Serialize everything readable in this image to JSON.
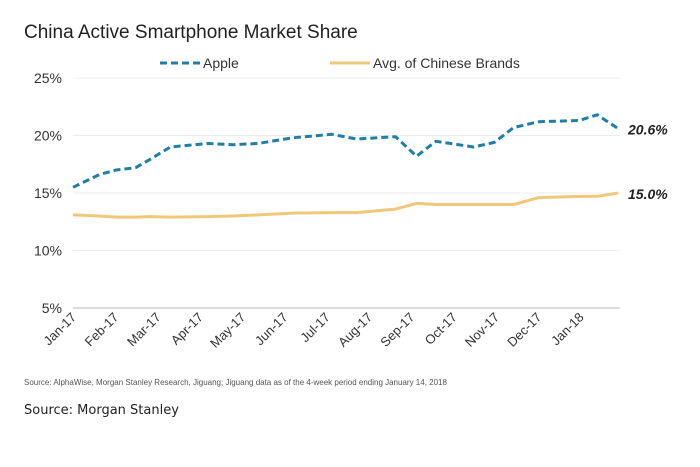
{
  "chart_data": {
    "type": "line",
    "title": "China Active Smartphone Market Share",
    "xlabel": "",
    "ylabel": "",
    "x_tick_labels": [
      "Jan-17",
      "Feb-17",
      "Mar-17",
      "Apr-17",
      "May-17",
      "Jun-17",
      "Jul-17",
      "Aug-17",
      "Sep-17",
      "Oct-17",
      "Nov-17",
      "Dec-17",
      "Jan-18"
    ],
    "y_tick_labels": [
      "5%",
      "10%",
      "15%",
      "20%",
      "25%"
    ],
    "ylim": [
      5,
      25
    ],
    "grid": "horizontal",
    "legend_placement": "top",
    "x": [
      "2017-01-01",
      "2017-01-20",
      "2017-02-01",
      "2017-02-15",
      "2017-02-25",
      "2017-03-12",
      "2017-04-08",
      "2017-04-26",
      "2017-05-14",
      "2017-06-08",
      "2017-07-06",
      "2017-07-24",
      "2017-08-21",
      "2017-09-05",
      "2017-09-19",
      "2017-10-16",
      "2017-10-31",
      "2017-11-14",
      "2017-12-02",
      "2017-12-31",
      "2018-01-13",
      "2018-01-28"
    ],
    "series": [
      {
        "name": "Apple",
        "color": "#1f7fa8",
        "style": "dashed",
        "values": [
          15.5,
          16.6,
          17.0,
          17.2,
          17.9,
          19.0,
          19.3,
          19.2,
          19.3,
          19.8,
          20.1,
          19.7,
          19.9,
          18.2,
          19.5,
          19.0,
          19.4,
          20.7,
          21.2,
          21.3,
          21.8,
          20.6
        ],
        "end_label": "20.6%"
      },
      {
        "name": "Avg. of Chinese Brands",
        "color": "#f0c87a",
        "style": "solid",
        "values": [
          13.1,
          13.0,
          12.9,
          12.9,
          12.95,
          12.9,
          12.95,
          13.0,
          13.1,
          13.25,
          13.3,
          13.3,
          13.6,
          14.1,
          14.0,
          14.0,
          14.0,
          14.0,
          14.6,
          14.7,
          14.7,
          15.0
        ],
        "end_label": "15.0%"
      }
    ]
  },
  "footnote": "Source: AlphaWise, Morgan Stanley Research, Jiguang; Jiguang data as of the 4-week period ending January 14, 2018",
  "source": "Source: Morgan Stanley"
}
